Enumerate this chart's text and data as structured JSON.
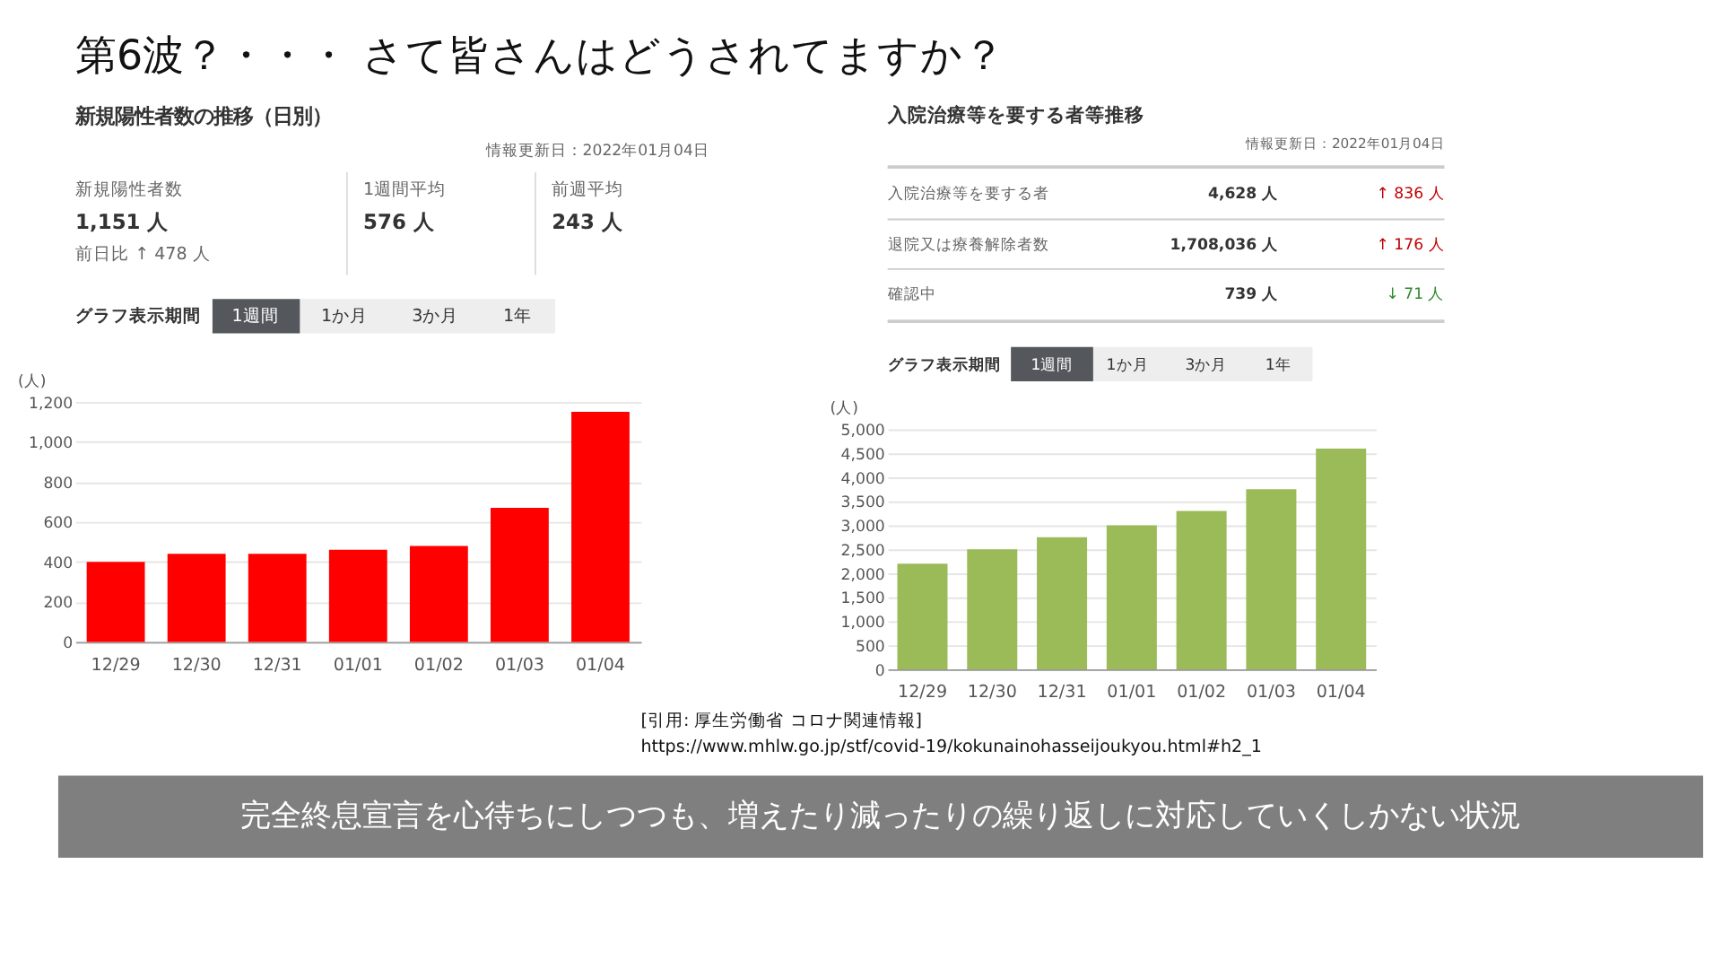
{
  "chart_data": [
    {
      "type": "bar",
      "title": "新規陽性者数の推移（日別）",
      "ylabel": "(人)",
      "categories": [
        "12/29",
        "12/30",
        "12/31",
        "01/01",
        "01/02",
        "01/03",
        "01/04"
      ],
      "values": [
        400,
        440,
        440,
        460,
        480,
        670,
        1150
      ],
      "color": "#ff0000",
      "ylim": [
        0,
        1200
      ],
      "yticks": [
        0,
        {
          "value": 200,
          "label": "200"
        },
        {
          "value": 400,
          "label": "400"
        },
        {
          "value": 600,
          "label": "600"
        },
        {
          "value": 800,
          "label": "800"
        },
        {
          "value": 1000,
          "label": "1,000"
        },
        {
          "value": 1200,
          "label": "1,200"
        }
      ],
      "grid": "y",
      "annotations": [
        "第6波？・・・ さて皆さんはどうされてますか？",
        "情報更新日：2022年01月04日",
        "新規陽性者数",
        "1,151 人",
        "前日比 ↑ 478 人",
        "1週間平均",
        "576 人",
        "前週平均",
        "243 人",
        "グラフ表示期間",
        "1週間",
        "1か月",
        "3か月",
        "1年",
        "[引用: 厚生労働省 コロナ関連情報]",
        "https://www.mhlw.go.jp/stf/covid-19/kokunainohasseijoukyou.html#h2_1",
        "完全終息宣言を心待ちにしつつも、増えたり減ったりの繰り返しに対応していくしかない状況"
      ]
    },
    {
      "type": "bar",
      "title": "入院治療等を要する者等推移",
      "ylabel": "(人)",
      "categories": [
        "12/29",
        "12/30",
        "12/31",
        "01/01",
        "01/02",
        "01/03",
        "01/04"
      ],
      "values": [
        2200,
        2500,
        2750,
        3000,
        3300,
        3750,
        4600
      ],
      "color": "#9bbb59",
      "ylim": [
        0,
        5000
      ],
      "yticks": [
        0,
        500,
        {
          "value": 1000,
          "label": "1,000"
        },
        {
          "value": 1500,
          "label": "1,500"
        },
        {
          "value": 2000,
          "label": "2,000"
        },
        {
          "value": 2500,
          "label": "2,500"
        },
        {
          "value": 3000,
          "label": "3,000"
        },
        {
          "value": 3500,
          "label": "3,500"
        },
        {
          "value": 4000,
          "label": "4,000"
        },
        {
          "value": 4500,
          "label": "4,500"
        },
        {
          "value": 5000,
          "label": "5,000"
        }
      ],
      "grid": "y",
      "annotations": [
        "情報更新日：2022年01月04日",
        "入院治療等を要する者",
        "4,628 人",
        "↑ 836 人",
        "退院又は療養解除者数",
        "1,708,036 人",
        "↑ 176 人",
        "確認中",
        "739 人",
        "↓ 71 人",
        "グラフ表示期間",
        "1週間",
        "1か月",
        "3か月",
        "1年"
      ]
    }
  ]
}
